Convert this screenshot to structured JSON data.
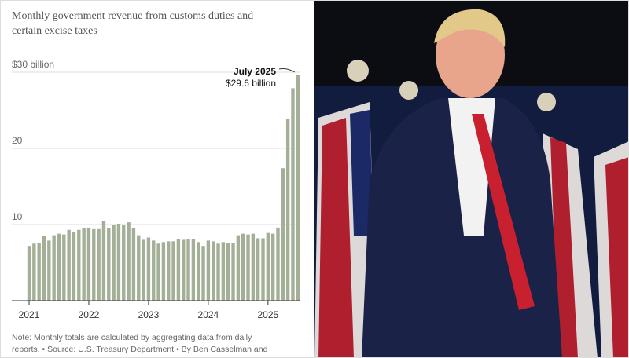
{
  "chart_data": {
    "type": "bar",
    "subtitle_lines": [
      "Monthly government revenue from customs duties and",
      "certain excise taxes"
    ],
    "categories": [
      "2021",
      null,
      null,
      null,
      null,
      null,
      null,
      null,
      null,
      null,
      null,
      null,
      "2022",
      null,
      null,
      null,
      null,
      null,
      null,
      null,
      null,
      null,
      null,
      null,
      "2023",
      null,
      null,
      null,
      null,
      null,
      null,
      null,
      null,
      null,
      null,
      null,
      "2024",
      null,
      null,
      null,
      null,
      null,
      null,
      null,
      null,
      null,
      null,
      null,
      "2025",
      null,
      null,
      null,
      null,
      null,
      null
    ],
    "values": [
      7.2,
      7.5,
      7.6,
      8.5,
      7.9,
      8.6,
      8.8,
      8.7,
      9.3,
      9.0,
      9.3,
      9.5,
      9.6,
      9.4,
      9.4,
      10.5,
      9.5,
      9.9,
      10.1,
      10.0,
      10.3,
      9.5,
      8.6,
      8.0,
      8.3,
      7.9,
      7.5,
      7.7,
      7.8,
      7.8,
      8.1,
      8.0,
      8.1,
      8.1,
      7.7,
      7.2,
      7.9,
      7.8,
      7.5,
      7.7,
      7.6,
      7.6,
      8.6,
      8.8,
      8.7,
      8.8,
      8.2,
      8.2,
      8.9,
      8.8,
      9.6,
      17.4,
      23.9,
      27.9,
      29.6
    ],
    "color": "#a3b097",
    "ylim": [
      0,
      30
    ],
    "yticks": [
      {
        "value": 30,
        "label": "$30 billion"
      },
      20,
      10
    ],
    "grid": true,
    "annotation": {
      "label": "July 2025",
      "value_label": "$29.6 billion"
    },
    "note_lines": [
      "Note: Monthly totals are calculated by aggregating data from daily",
      "reports.  •  Source: U.S. Treasury Department  •  By Ben Casselman and"
    ]
  }
}
